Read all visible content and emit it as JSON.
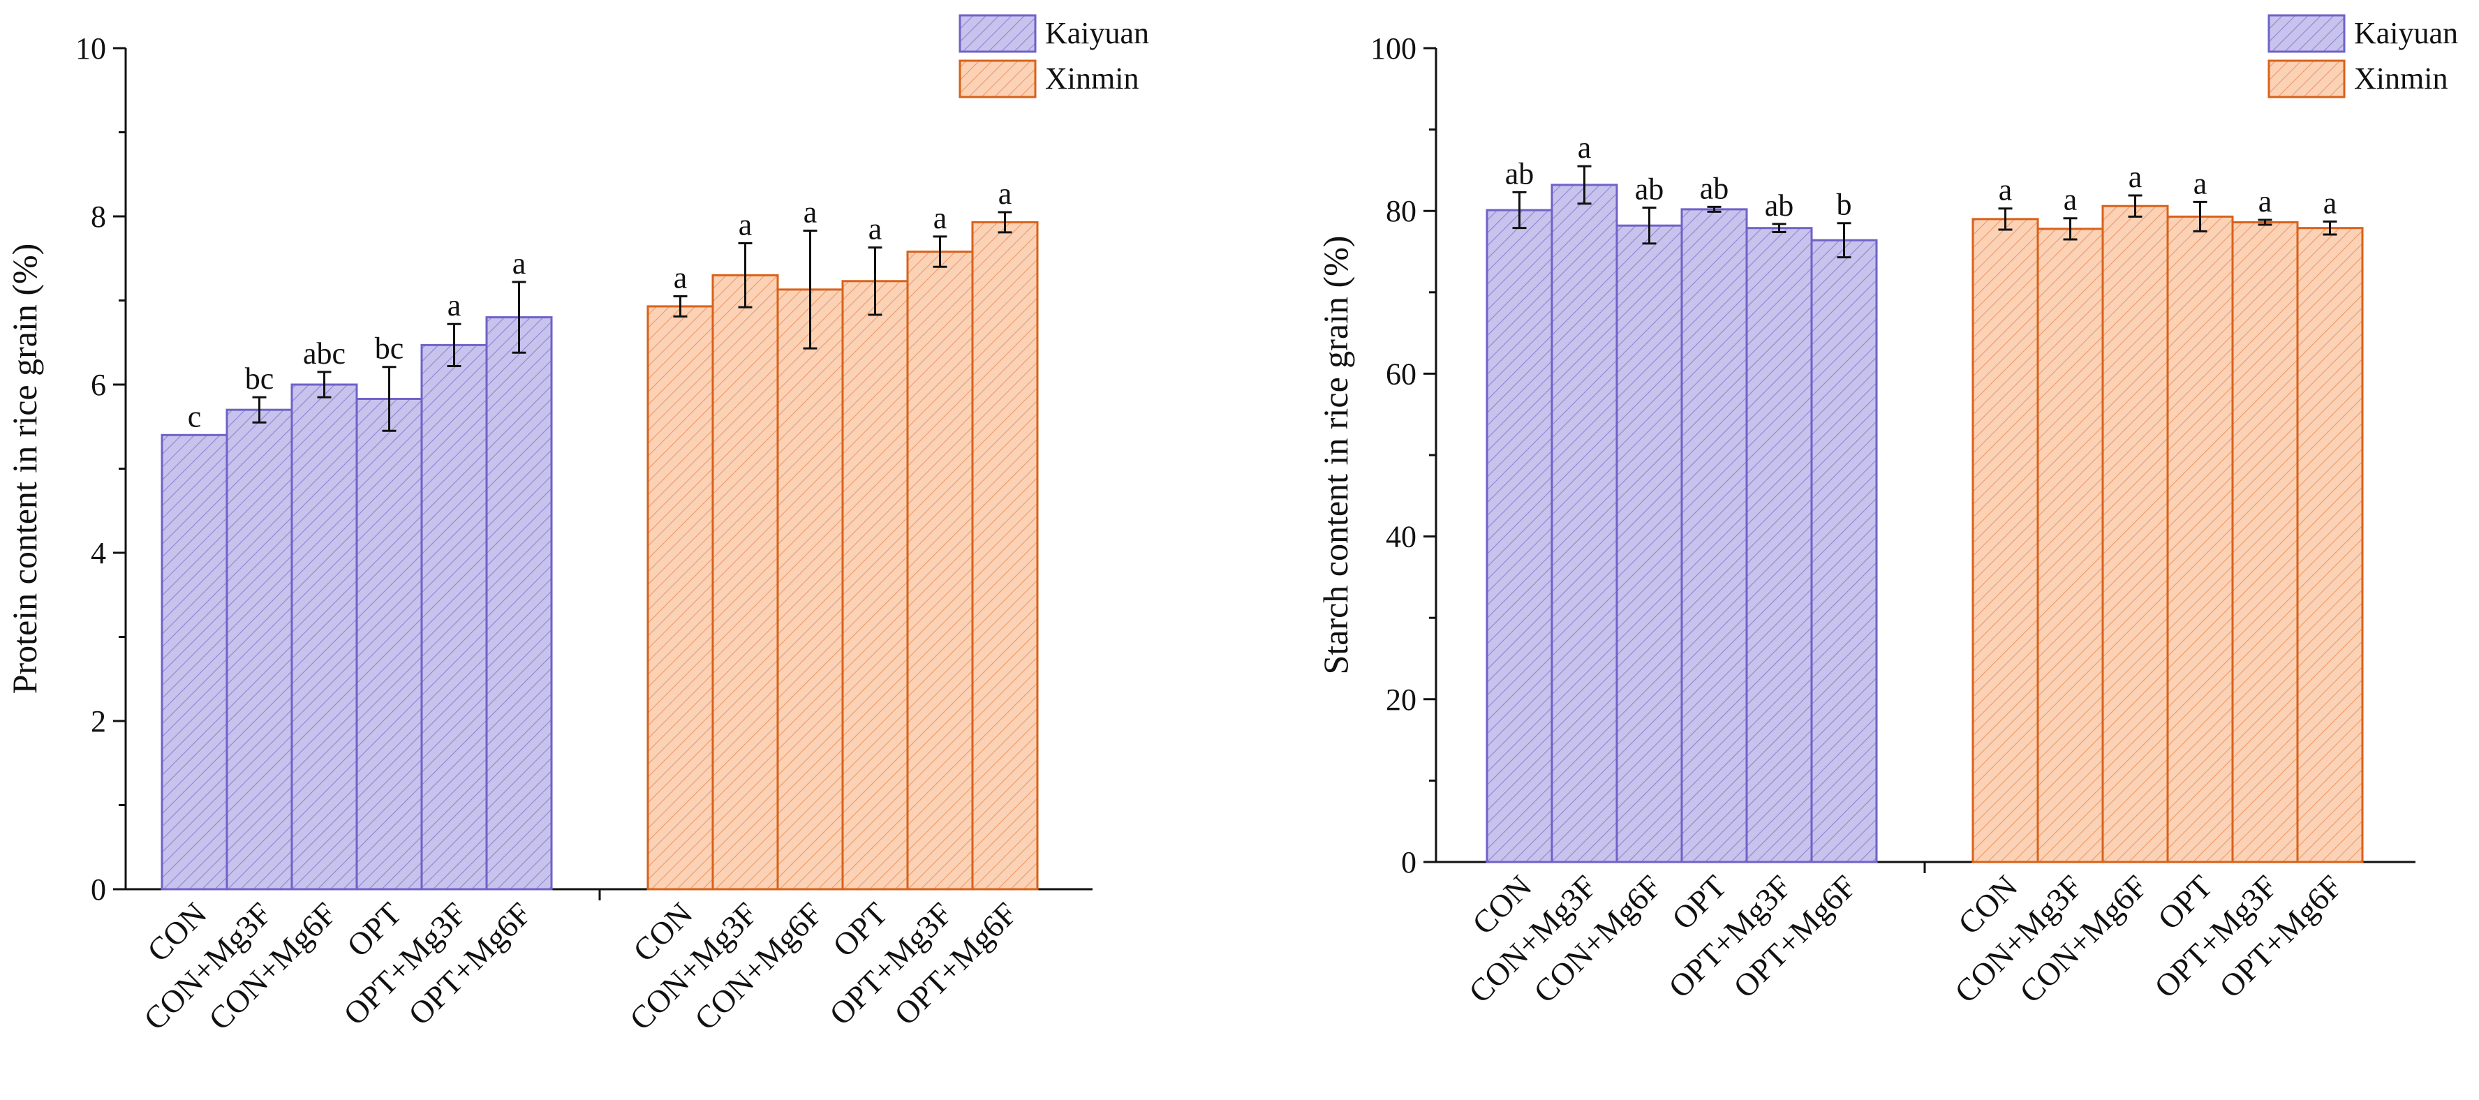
{
  "colors": {
    "kaiyuan_fill": "#c8c3ec",
    "kaiyuan_stroke": "#6f62c8",
    "kaiyuan_hatch": "#8f85d4",
    "xinmin_fill": "#fbd2b6",
    "xinmin_stroke": "#d9611a",
    "xinmin_hatch": "#ec9a68"
  },
  "chart_data": [
    {
      "type": "bar",
      "ylabel": "Protein content in rice grain (%)",
      "ylim": [
        0,
        10
      ],
      "yticks": [
        "0",
        "2",
        "4",
        "6",
        "8",
        "10"
      ],
      "legend": [
        "Kaiyuan",
        "Xinmin"
      ],
      "legend_position": "top-right",
      "categories": [
        "CON",
        "CON+Mg3F",
        "CON+Mg6F",
        "OPT",
        "OPT+Mg3F",
        "OPT+Mg6F"
      ],
      "series": [
        {
          "name": "Kaiyuan",
          "values": [
            5.4,
            5.7,
            6.0,
            5.83,
            6.47,
            6.8
          ],
          "errors": [
            0,
            0.15,
            0.15,
            0.38,
            0.25,
            0.42
          ],
          "letters": [
            "c",
            "bc",
            "abc",
            "bc",
            "a",
            "a"
          ]
        },
        {
          "name": "Xinmin",
          "values": [
            6.93,
            7.3,
            7.13,
            7.23,
            7.58,
            7.93
          ],
          "errors": [
            0.12,
            0.38,
            0.7,
            0.4,
            0.18,
            0.12
          ],
          "letters": [
            "a",
            "a",
            "a",
            "a",
            "a",
            "a"
          ]
        }
      ]
    },
    {
      "type": "bar",
      "ylabel": "Starch content in rice grain (%)",
      "ylim": [
        0,
        100
      ],
      "yticks": [
        "0",
        "20",
        "40",
        "60",
        "80",
        "100"
      ],
      "legend": [
        "Kaiyuan",
        "Xinmin"
      ],
      "legend_position": "top-right",
      "categories": [
        "CON",
        "CON+Mg3F",
        "CON+Mg6F",
        "OPT",
        "OPT+Mg3F",
        "OPT+Mg6F"
      ],
      "series": [
        {
          "name": "Kaiyuan",
          "values": [
            80.1,
            83.2,
            78.2,
            80.2,
            77.9,
            76.4
          ],
          "errors": [
            2.2,
            2.3,
            2.2,
            0.3,
            0.5,
            2.1
          ],
          "letters": [
            "ab",
            "a",
            "ab",
            "ab",
            "ab",
            "b"
          ]
        },
        {
          "name": "Xinmin",
          "values": [
            79.0,
            77.8,
            80.6,
            79.3,
            78.6,
            77.9
          ],
          "errors": [
            1.3,
            1.3,
            1.3,
            1.8,
            0.3,
            0.8
          ],
          "letters": [
            "a",
            "a",
            "a",
            "a",
            "a",
            "a"
          ]
        }
      ]
    }
  ]
}
